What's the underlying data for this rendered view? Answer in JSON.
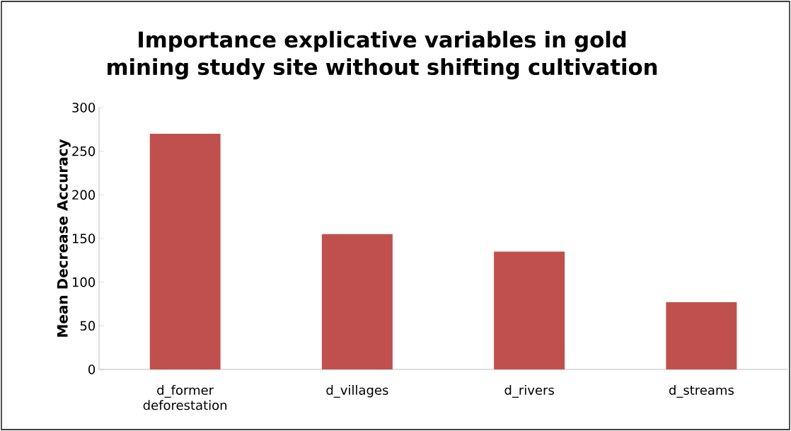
{
  "chart_data": {
    "type": "bar",
    "title": "Importance explicative variables in gold mining study site without shifting cultivation",
    "ylabel": "Mean Decrease Accuracy",
    "categories": [
      "d_former deforestation",
      "d_villages",
      "d_rivers",
      "d_streams"
    ],
    "values": [
      270,
      155,
      135,
      77
    ],
    "color": "#c0504d",
    "ylim": [
      0,
      300
    ],
    "yticks": [
      0,
      50,
      100,
      150,
      200,
      250,
      300
    ],
    "grid": false
  }
}
